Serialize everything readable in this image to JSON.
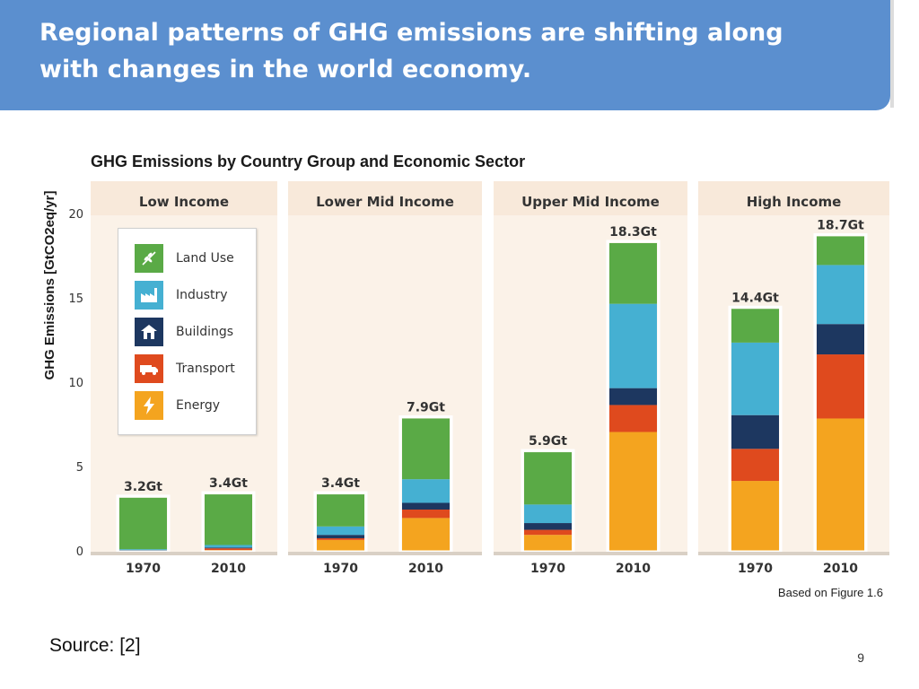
{
  "slide": {
    "title": "Regional patterns of GHG emissions are shifting along with changes in the world economy.",
    "note": "Based on Figure 1.6",
    "source": "Source:  [2]",
    "page_number": "9"
  },
  "legend": [
    {
      "label": "Land Use",
      "icon": "leaf-icon",
      "color": "#5aaa46"
    },
    {
      "label": "Industry",
      "icon": "factory-icon",
      "color": "#45b0d2"
    },
    {
      "label": "Buildings",
      "icon": "house-icon",
      "color": "#1d3760"
    },
    {
      "label": "Transport",
      "icon": "truck-icon",
      "color": "#df4a1e"
    },
    {
      "label": "Energy",
      "icon": "lightning-icon",
      "color": "#f4a41f"
    }
  ],
  "chart_data": {
    "type": "bar",
    "stacked": true,
    "title": "GHG Emissions by Country Group and Economic Sector",
    "ylabel": "GHG Emissions [GtCO2eq/yr]",
    "ylim": [
      0,
      22
    ],
    "yticks": [
      0,
      5,
      10,
      15,
      20
    ],
    "sectors": [
      "Energy",
      "Transport",
      "Buildings",
      "Industry",
      "Land Use"
    ],
    "colors": {
      "Energy": "#f4a41f",
      "Transport": "#df4a1e",
      "Buildings": "#1d3760",
      "Industry": "#45b0d2",
      "Land Use": "#5aaa46"
    },
    "groups": [
      {
        "name": "Low Income",
        "bars": [
          {
            "year": "1970",
            "total_label": "3.2Gt",
            "values": {
              "Energy": 0.05,
              "Transport": 0.03,
              "Buildings": 0.02,
              "Industry": 0.05,
              "Land Use": 3.05
            }
          },
          {
            "year": "2010",
            "total_label": "3.4Gt",
            "values": {
              "Energy": 0.1,
              "Transport": 0.1,
              "Buildings": 0.05,
              "Industry": 0.15,
              "Land Use": 3.0
            }
          }
        ]
      },
      {
        "name": "Lower Mid Income",
        "bars": [
          {
            "year": "1970",
            "total_label": "3.4Gt",
            "values": {
              "Energy": 0.7,
              "Transport": 0.1,
              "Buildings": 0.2,
              "Industry": 0.5,
              "Land Use": 1.9
            }
          },
          {
            "year": "2010",
            "total_label": "7.9Gt",
            "values": {
              "Energy": 2.0,
              "Transport": 0.5,
              "Buildings": 0.4,
              "Industry": 1.4,
              "Land Use": 3.6
            }
          }
        ]
      },
      {
        "name": "Upper Mid Income",
        "bars": [
          {
            "year": "1970",
            "total_label": "5.9Gt",
            "values": {
              "Energy": 1.0,
              "Transport": 0.3,
              "Buildings": 0.4,
              "Industry": 1.1,
              "Land Use": 3.1
            }
          },
          {
            "year": "2010",
            "total_label": "18.3Gt",
            "values": {
              "Energy": 7.1,
              "Transport": 1.6,
              "Buildings": 1.0,
              "Industry": 5.0,
              "Land Use": 3.6
            }
          }
        ]
      },
      {
        "name": "High Income",
        "bars": [
          {
            "year": "1970",
            "total_label": "14.4Gt",
            "values": {
              "Energy": 4.2,
              "Transport": 1.9,
              "Buildings": 2.0,
              "Industry": 4.3,
              "Land Use": 2.0
            }
          },
          {
            "year": "2010",
            "total_label": "18.7Gt",
            "values": {
              "Energy": 7.9,
              "Transport": 3.8,
              "Buildings": 1.8,
              "Industry": 3.5,
              "Land Use": 1.7
            }
          }
        ]
      }
    ]
  }
}
